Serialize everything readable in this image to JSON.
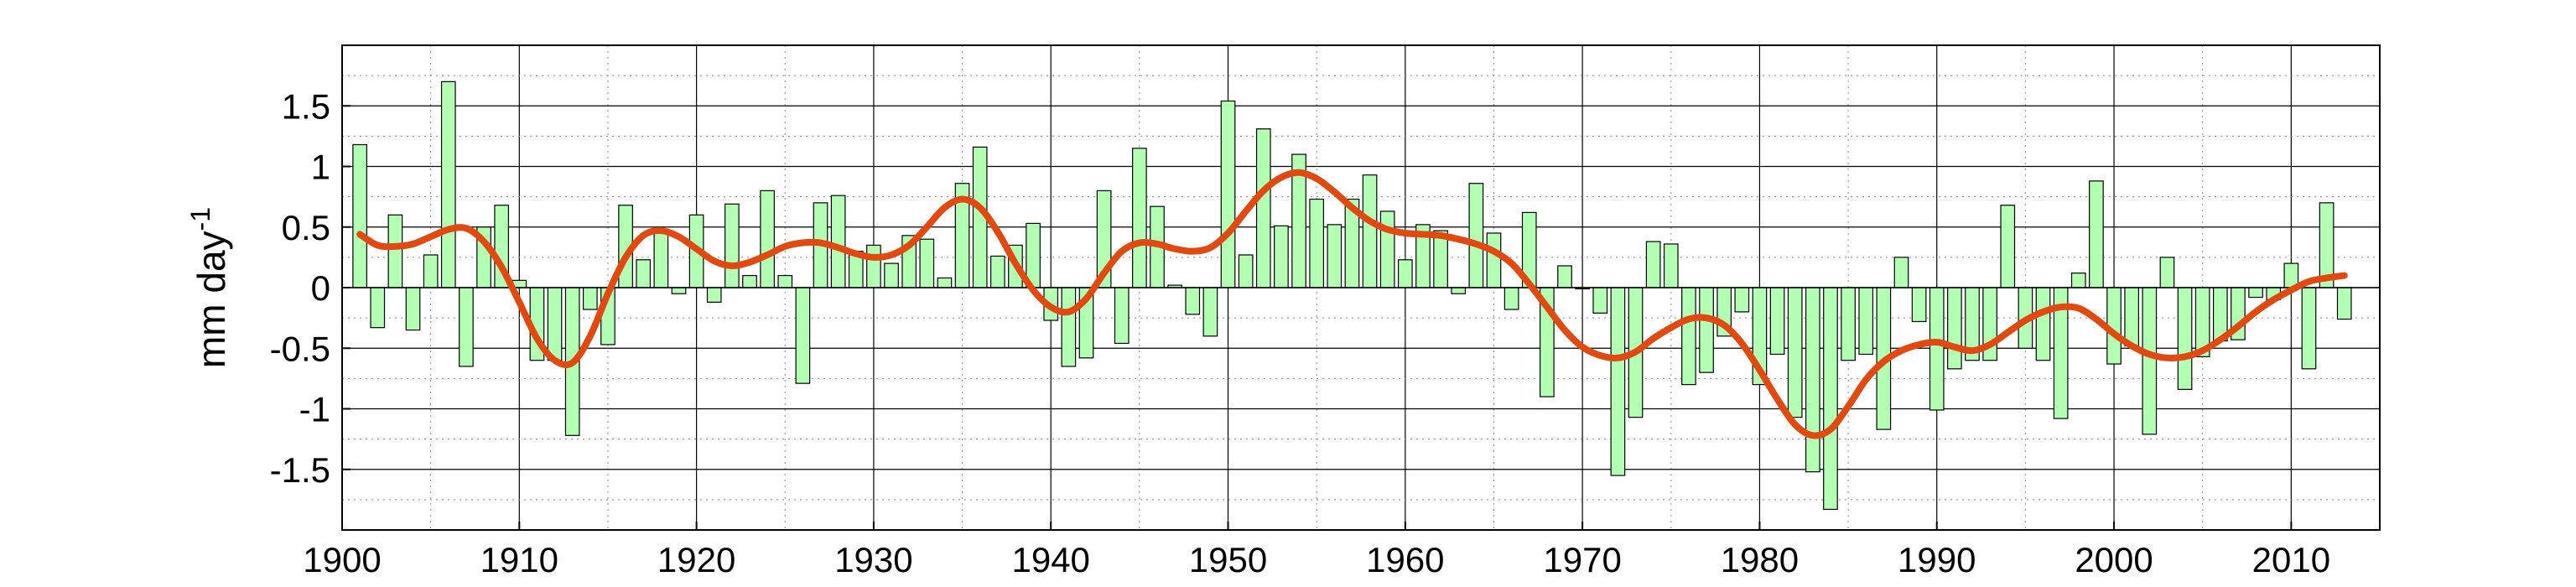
{
  "chart_data": {
    "type": "bar",
    "ylabel": "mm day",
    "ylabel_superscript": "-1",
    "xlim": [
      1900,
      2015
    ],
    "ylim": [
      -2.0,
      2.0
    ],
    "xticks": [
      1900,
      1910,
      1920,
      1930,
      1940,
      1950,
      1960,
      1970,
      1980,
      1990,
      2000,
      2010
    ],
    "yticks": [
      -1.5,
      -1,
      -0.5,
      0,
      0.5,
      1,
      1.5
    ],
    "ytick_labels": [
      "-1.5",
      "-1",
      "-0.5",
      "0",
      "0.5",
      "1",
      "1.5"
    ],
    "grid": true,
    "colors": {
      "bars": "#b3ffb3",
      "bar_edge": "#000000",
      "smooth": "#e04a10"
    },
    "series": [
      {
        "type": "bar",
        "x": [
          1901,
          1902,
          1903,
          1904,
          1905,
          1906,
          1907,
          1908,
          1909,
          1910,
          1911,
          1912,
          1913,
          1914,
          1915,
          1916,
          1917,
          1918,
          1919,
          1920,
          1921,
          1922,
          1923,
          1924,
          1925,
          1926,
          1927,
          1928,
          1929,
          1930,
          1931,
          1932,
          1933,
          1934,
          1935,
          1936,
          1937,
          1938,
          1939,
          1940,
          1941,
          1942,
          1943,
          1944,
          1945,
          1946,
          1947,
          1948,
          1949,
          1950,
          1951,
          1952,
          1953,
          1954,
          1955,
          1956,
          1957,
          1958,
          1959,
          1960,
          1961,
          1962,
          1963,
          1964,
          1965,
          1966,
          1967,
          1968,
          1969,
          1970,
          1971,
          1972,
          1973,
          1974,
          1975,
          1976,
          1977,
          1978,
          1979,
          1980,
          1981,
          1982,
          1983,
          1984,
          1985,
          1986,
          1987,
          1988,
          1989,
          1990,
          1991,
          1992,
          1993,
          1994,
          1995,
          1996,
          1997,
          1998,
          1999,
          2000,
          2001,
          2002,
          2003,
          2004,
          2005,
          2006,
          2007,
          2008,
          2009,
          2010,
          2011,
          2012,
          2013
        ],
        "values": [
          1.18,
          -0.33,
          0.6,
          -0.35,
          0.27,
          1.7,
          -0.65,
          0.5,
          0.68,
          0.06,
          -0.6,
          -0.6,
          -1.22,
          -0.18,
          -0.47,
          0.68,
          0.23,
          0.48,
          -0.05,
          0.6,
          -0.12,
          0.69,
          0.1,
          0.8,
          0.1,
          -0.79,
          0.7,
          0.76,
          0.3,
          0.35,
          0.2,
          0.43,
          0.4,
          0.08,
          0.86,
          1.16,
          0.26,
          0.35,
          0.53,
          -0.27,
          -0.65,
          -0.58,
          0.8,
          -0.46,
          1.15,
          0.67,
          0.02,
          -0.22,
          -0.4,
          1.54,
          0.27,
          1.31,
          0.51,
          1.1,
          0.73,
          0.52,
          0.73,
          0.93,
          0.63,
          0.23,
          0.52,
          0.47,
          -0.05,
          0.86,
          0.45,
          -0.18,
          0.62,
          -0.9,
          0.18,
          -0.01,
          -0.21,
          -1.55,
          -1.07,
          0.38,
          0.36,
          -0.8,
          -0.7,
          -0.4,
          -0.2,
          -0.8,
          -0.55,
          -1.07,
          -1.52,
          -1.83,
          -0.6,
          -0.55,
          -1.17,
          0.25,
          -0.28,
          -1.01,
          -0.67,
          -0.6,
          -0.6,
          0.68,
          -0.5,
          -0.6,
          -1.08,
          0.12,
          0.88,
          -0.63,
          -0.48,
          -1.21,
          0.25,
          -0.84,
          -0.57,
          -0.44,
          -0.43,
          -0.08,
          -0.1,
          0.2,
          -0.67,
          0.7,
          -0.26
        ]
      },
      {
        "type": "line",
        "x": [
          1901,
          1902,
          1903,
          1904,
          1905,
          1906,
          1907,
          1908,
          1909,
          1910,
          1911,
          1912,
          1913,
          1914,
          1915,
          1916,
          1917,
          1918,
          1919,
          1920,
          1921,
          1922,
          1923,
          1924,
          1925,
          1926,
          1927,
          1928,
          1929,
          1930,
          1931,
          1932,
          1933,
          1934,
          1935,
          1936,
          1937,
          1938,
          1939,
          1940,
          1941,
          1942,
          1943,
          1944,
          1945,
          1946,
          1947,
          1948,
          1949,
          1950,
          1951,
          1952,
          1953,
          1954,
          1955,
          1956,
          1957,
          1958,
          1959,
          1960,
          1961,
          1962,
          1963,
          1964,
          1965,
          1966,
          1967,
          1968,
          1969,
          1970,
          1971,
          1972,
          1973,
          1974,
          1975,
          1976,
          1977,
          1978,
          1979,
          1980,
          1981,
          1982,
          1983,
          1984,
          1985,
          1986,
          1987,
          1988,
          1989,
          1990,
          1991,
          1992,
          1993,
          1994,
          1995,
          1996,
          1997,
          1998,
          1999,
          2000,
          2001,
          2002,
          2003,
          2004,
          2005,
          2006,
          2007,
          2008,
          2009,
          2010,
          2011,
          2012,
          2013
        ],
        "values": [
          0.44,
          0.35,
          0.34,
          0.36,
          0.42,
          0.48,
          0.49,
          0.38,
          0.17,
          -0.12,
          -0.42,
          -0.6,
          -0.62,
          -0.4,
          -0.05,
          0.25,
          0.43,
          0.47,
          0.42,
          0.32,
          0.22,
          0.18,
          0.21,
          0.27,
          0.34,
          0.37,
          0.37,
          0.33,
          0.28,
          0.25,
          0.27,
          0.35,
          0.5,
          0.66,
          0.73,
          0.66,
          0.46,
          0.2,
          -0.02,
          -0.16,
          -0.2,
          -0.09,
          0.12,
          0.3,
          0.37,
          0.36,
          0.32,
          0.3,
          0.33,
          0.45,
          0.63,
          0.8,
          0.91,
          0.95,
          0.9,
          0.79,
          0.66,
          0.55,
          0.48,
          0.45,
          0.44,
          0.43,
          0.4,
          0.36,
          0.3,
          0.2,
          0.03,
          -0.16,
          -0.35,
          -0.49,
          -0.56,
          -0.58,
          -0.53,
          -0.42,
          -0.33,
          -0.26,
          -0.25,
          -0.31,
          -0.46,
          -0.68,
          -0.92,
          -1.13,
          -1.22,
          -1.17,
          -0.98,
          -0.76,
          -0.61,
          -0.52,
          -0.47,
          -0.45,
          -0.49,
          -0.52,
          -0.47,
          -0.37,
          -0.27,
          -0.2,
          -0.16,
          -0.17,
          -0.26,
          -0.38,
          -0.48,
          -0.55,
          -0.58,
          -0.57,
          -0.52,
          -0.43,
          -0.32,
          -0.2,
          -0.1,
          -0.02,
          0.05,
          0.08,
          0.1
        ]
      }
    ]
  }
}
